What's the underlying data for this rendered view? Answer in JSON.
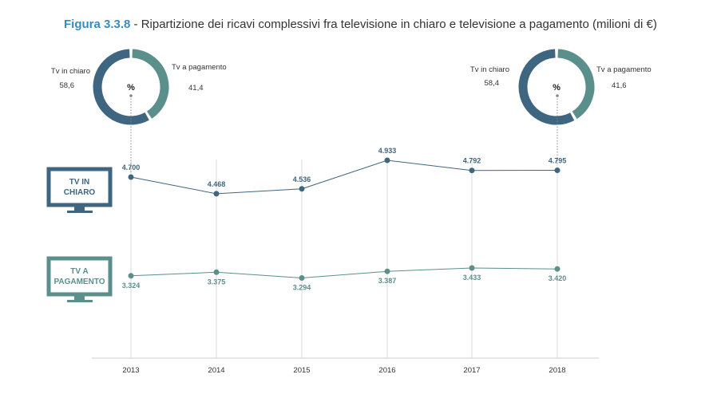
{
  "title": {
    "figure": "Figura 3.3.8",
    "text": " - Ripartizione dei ricavi complessivi fra televisione in chiaro e televisione a pagamento (milioni di €)"
  },
  "colors": {
    "free_tv": "#3f6680",
    "pay_tv": "#5b8f8c",
    "title_accent": "#3a8bbd",
    "grid": "#d9d9d9"
  },
  "icons": {
    "free": {
      "name": "tv-icon",
      "label_line1": "TV IN",
      "label_line2": "CHIARO"
    },
    "pay": {
      "name": "tv-icon",
      "label_line1": "TV A",
      "label_line2": "PAGAMENTO"
    }
  },
  "donuts": [
    {
      "year": "2013",
      "center_label": "%",
      "free_label": "Tv in chiaro",
      "free_value": "58,6",
      "free_share": 58.6,
      "pay_label": "Tv a pagamento",
      "pay_value": "41,4",
      "pay_share": 41.4
    },
    {
      "year": "2018",
      "center_label": "%",
      "free_label": "Tv in chiaro",
      "free_value": "58,4",
      "free_share": 58.4,
      "pay_label": "Tv a pagamento",
      "pay_value": "41,6",
      "pay_share": 41.6
    }
  ],
  "chart_data": {
    "type": "line",
    "categories": [
      "2013",
      "2014",
      "2015",
      "2016",
      "2017",
      "2018"
    ],
    "series": [
      {
        "name": "TV IN CHIARO",
        "values": [
          4700,
          4468,
          4536,
          4933,
          4792,
          4795
        ],
        "labels": [
          "4.700",
          "4.468",
          "4.536",
          "4.933",
          "4.792",
          "4.795"
        ]
      },
      {
        "name": "TV A PAGAMENTO",
        "values": [
          3324,
          3375,
          3294,
          3387,
          3433,
          3420
        ],
        "labels": [
          "3.324",
          "3.375",
          "3.294",
          "3.387",
          "3.433",
          "3.420"
        ]
      }
    ]
  }
}
